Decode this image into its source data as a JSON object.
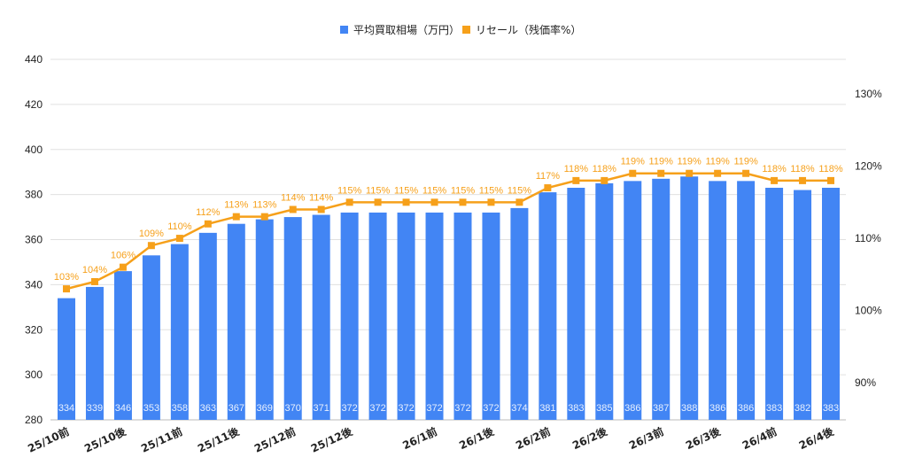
{
  "chart_data": {
    "type": "bar+line",
    "categories": [
      "25/10前",
      "",
      "25/10後",
      "",
      "25/11前",
      "",
      "25/11後",
      "",
      "25/12前",
      "",
      "25/12後",
      "",
      "",
      "26/1前",
      "",
      "26/1後",
      "",
      "26/2前",
      "",
      "26/2後",
      "",
      "26/3前",
      "",
      "26/3後",
      "",
      "26/4前",
      "",
      "26/4後"
    ],
    "series": [
      {
        "name": "平均買取相場（万円）",
        "type": "bar",
        "axis": "left",
        "color": "#4285f4",
        "values": [
          334,
          339,
          346,
          353,
          358,
          363,
          367,
          369,
          370,
          371,
          372,
          372,
          372,
          372,
          372,
          372,
          374,
          381,
          383,
          385,
          386,
          387,
          388,
          386,
          386,
          383,
          382,
          383
        ]
      },
      {
        "name": "リセール（残価率%）",
        "type": "line",
        "axis": "right",
        "color": "#f6a01a",
        "values": [
          103,
          104,
          106,
          109,
          110,
          112,
          113,
          113,
          114,
          114,
          115,
          115,
          115,
          115,
          115,
          115,
          115,
          117,
          118,
          118,
          119,
          119,
          119,
          119,
          119,
          118,
          118,
          118
        ]
      }
    ],
    "left_axis": {
      "ylim": [
        280,
        440
      ],
      "ticks": [
        280,
        300,
        320,
        340,
        360,
        380,
        400,
        420,
        440
      ]
    },
    "right_axis": {
      "ylim": [
        84.85,
        134.8
      ],
      "ticks": [
        "90%",
        "100%",
        "110%",
        "120%",
        "130%"
      ],
      "tick_values": [
        90,
        100,
        110,
        120,
        130
      ]
    },
    "legend": "top-center",
    "grid": true
  }
}
